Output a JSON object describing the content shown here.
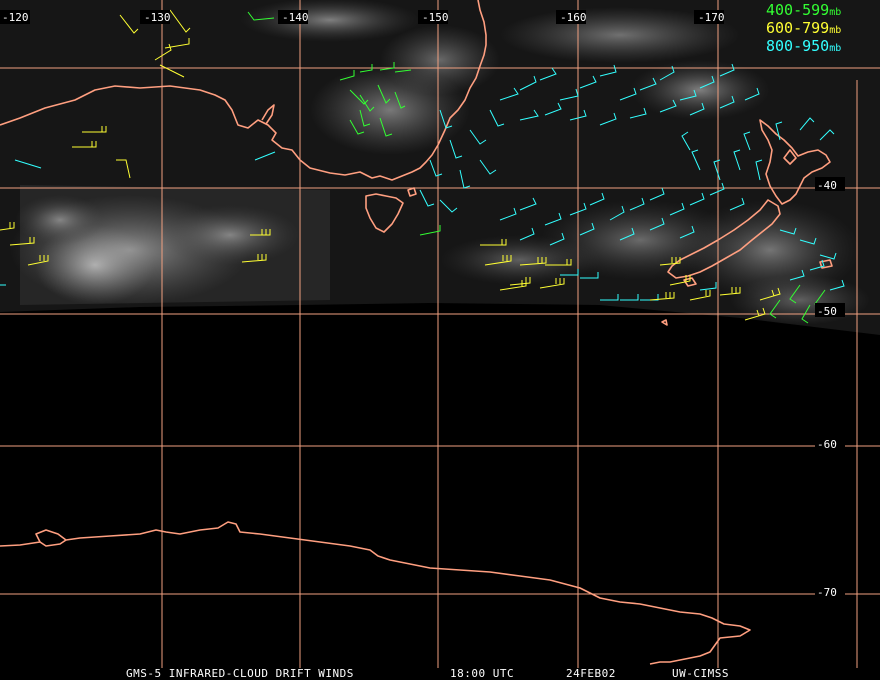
{
  "map": {
    "product": "GMS-5 INFRARED-CLOUD DRIFT WINDS",
    "time": "18:00 UTC",
    "date": "24FEB02",
    "source": "UW-CIMSS",
    "grid_color": "#f0a080",
    "coast_color": "#ff9f80",
    "longitude_labels": [
      "-120",
      "-130",
      "-140",
      "-150",
      "-160",
      "-170"
    ],
    "latitude_labels": [
      "-40",
      "-50",
      "-60",
      "-70"
    ]
  },
  "legend": [
    {
      "range": "400-599",
      "unit": "mb",
      "color": "#33ff33"
    },
    {
      "range": "600-799",
      "unit": "mb",
      "color": "#ffff33"
    },
    {
      "range": "800-950",
      "unit": "mb",
      "color": "#33ffff"
    }
  ]
}
